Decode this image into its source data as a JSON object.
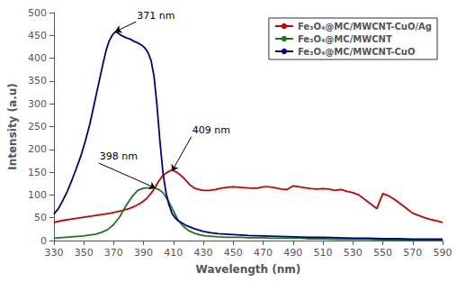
{
  "chart_data": {
    "type": "line",
    "xlabel": "Wavelength (nm)",
    "ylabel": "Intensity (a.u)",
    "xlim": [
      330,
      590
    ],
    "ylim": [
      0,
      500
    ],
    "xticks": [
      330,
      350,
      370,
      390,
      410,
      430,
      450,
      470,
      490,
      510,
      530,
      550,
      570,
      590
    ],
    "yticks": [
      0,
      50,
      100,
      150,
      200,
      250,
      300,
      350,
      400,
      450,
      500
    ],
    "grid": false,
    "legend": "upper right",
    "series": [
      {
        "name": "Fe₃O₄@MC/MWCNT-CuO/Ag",
        "color": "#cc0000",
        "x": [
          330,
          333,
          336,
          340,
          344,
          348,
          352,
          356,
          360,
          364,
          368,
          372,
          376,
          380,
          384,
          388,
          392,
          396,
          398,
          400,
          403,
          406,
          409,
          412,
          415,
          418,
          421,
          424,
          427,
          430,
          434,
          438,
          442,
          446,
          450,
          454,
          458,
          462,
          466,
          470,
          474,
          478,
          482,
          486,
          490,
          494,
          498,
          502,
          506,
          510,
          514,
          518,
          522,
          526,
          530,
          534,
          538,
          542,
          546,
          550,
          554,
          558,
          562,
          566,
          570,
          574,
          578,
          582,
          586,
          590
        ],
        "values": [
          40,
          42,
          44,
          46,
          48,
          50,
          52,
          54,
          56,
          58,
          60,
          63,
          66,
          70,
          75,
          82,
          92,
          108,
          118,
          130,
          143,
          150,
          155,
          150,
          143,
          133,
          122,
          115,
          112,
          110,
          110,
          112,
          115,
          117,
          118,
          117,
          116,
          115,
          115,
          118,
          118,
          116,
          113,
          112,
          120,
          118,
          116,
          114,
          113,
          114,
          113,
          110,
          112,
          108,
          105,
          100,
          90,
          80,
          70,
          103,
          98,
          90,
          80,
          70,
          60,
          55,
          50,
          46,
          43,
          40
        ]
      },
      {
        "name": "Fe₃O₄@MC/MWCNT",
        "color": "#1a7a1a",
        "x": [
          330,
          334,
          338,
          342,
          346,
          350,
          354,
          358,
          362,
          366,
          370,
          374,
          378,
          382,
          386,
          390,
          394,
          397,
          398,
          400,
          403,
          406,
          410,
          413,
          416,
          420,
          424,
          428,
          432,
          436,
          440,
          445,
          450,
          455,
          460,
          465,
          470,
          475,
          480,
          485,
          490,
          495,
          500,
          510,
          520,
          530,
          540,
          550,
          560,
          570,
          580,
          590
        ],
        "values": [
          5,
          6,
          7,
          8,
          9,
          10,
          12,
          14,
          18,
          24,
          35,
          52,
          75,
          95,
          110,
          115,
          116,
          116,
          115,
          112,
          105,
          90,
          65,
          45,
          33,
          22,
          16,
          12,
          10,
          9,
          8,
          7,
          7,
          7,
          6,
          6,
          6,
          5,
          5,
          5,
          5,
          5,
          4,
          4,
          3,
          3,
          3,
          2,
          2,
          2,
          2,
          2
        ]
      },
      {
        "name": "Fe₃O₄@MC/MWCNT-CuO",
        "color": "#00008B",
        "x": [
          330,
          333,
          336,
          339,
          342,
          345,
          348,
          351,
          354,
          357,
          360,
          363,
          365,
          367,
          369,
          371,
          373,
          375,
          377,
          379,
          381,
          383,
          385,
          387,
          389,
          391,
          393,
          395,
          397,
          399,
          401,
          403,
          405,
          407,
          409,
          411,
          413,
          415,
          418,
          421,
          424,
          427,
          430,
          435,
          440,
          445,
          450,
          460,
          470,
          480,
          490,
          500,
          510,
          520,
          530,
          540,
          550,
          560,
          570,
          580,
          590
        ],
        "values": [
          58,
          70,
          88,
          108,
          132,
          158,
          185,
          218,
          255,
          300,
          345,
          390,
          418,
          438,
          450,
          458,
          455,
          450,
          447,
          444,
          442,
          438,
          435,
          432,
          428,
          422,
          412,
          395,
          360,
          295,
          215,
          148,
          105,
          78,
          60,
          50,
          44,
          40,
          34,
          30,
          26,
          23,
          20,
          17,
          15,
          14,
          13,
          11,
          10,
          9,
          8,
          7,
          7,
          6,
          5,
          5,
          4,
          4,
          3,
          3,
          3
        ]
      }
    ],
    "annotations": [
      {
        "text": "371 nm",
        "xy": [
          371,
          458
        ],
        "xytext": [
          385,
          480
        ]
      },
      {
        "text": "398 nm",
        "xy": [
          398,
          115
        ],
        "xytext": [
          360,
          170
        ]
      },
      {
        "text": "409 nm",
        "xy": [
          409,
          152
        ],
        "xytext": [
          422,
          228
        ]
      }
    ]
  }
}
